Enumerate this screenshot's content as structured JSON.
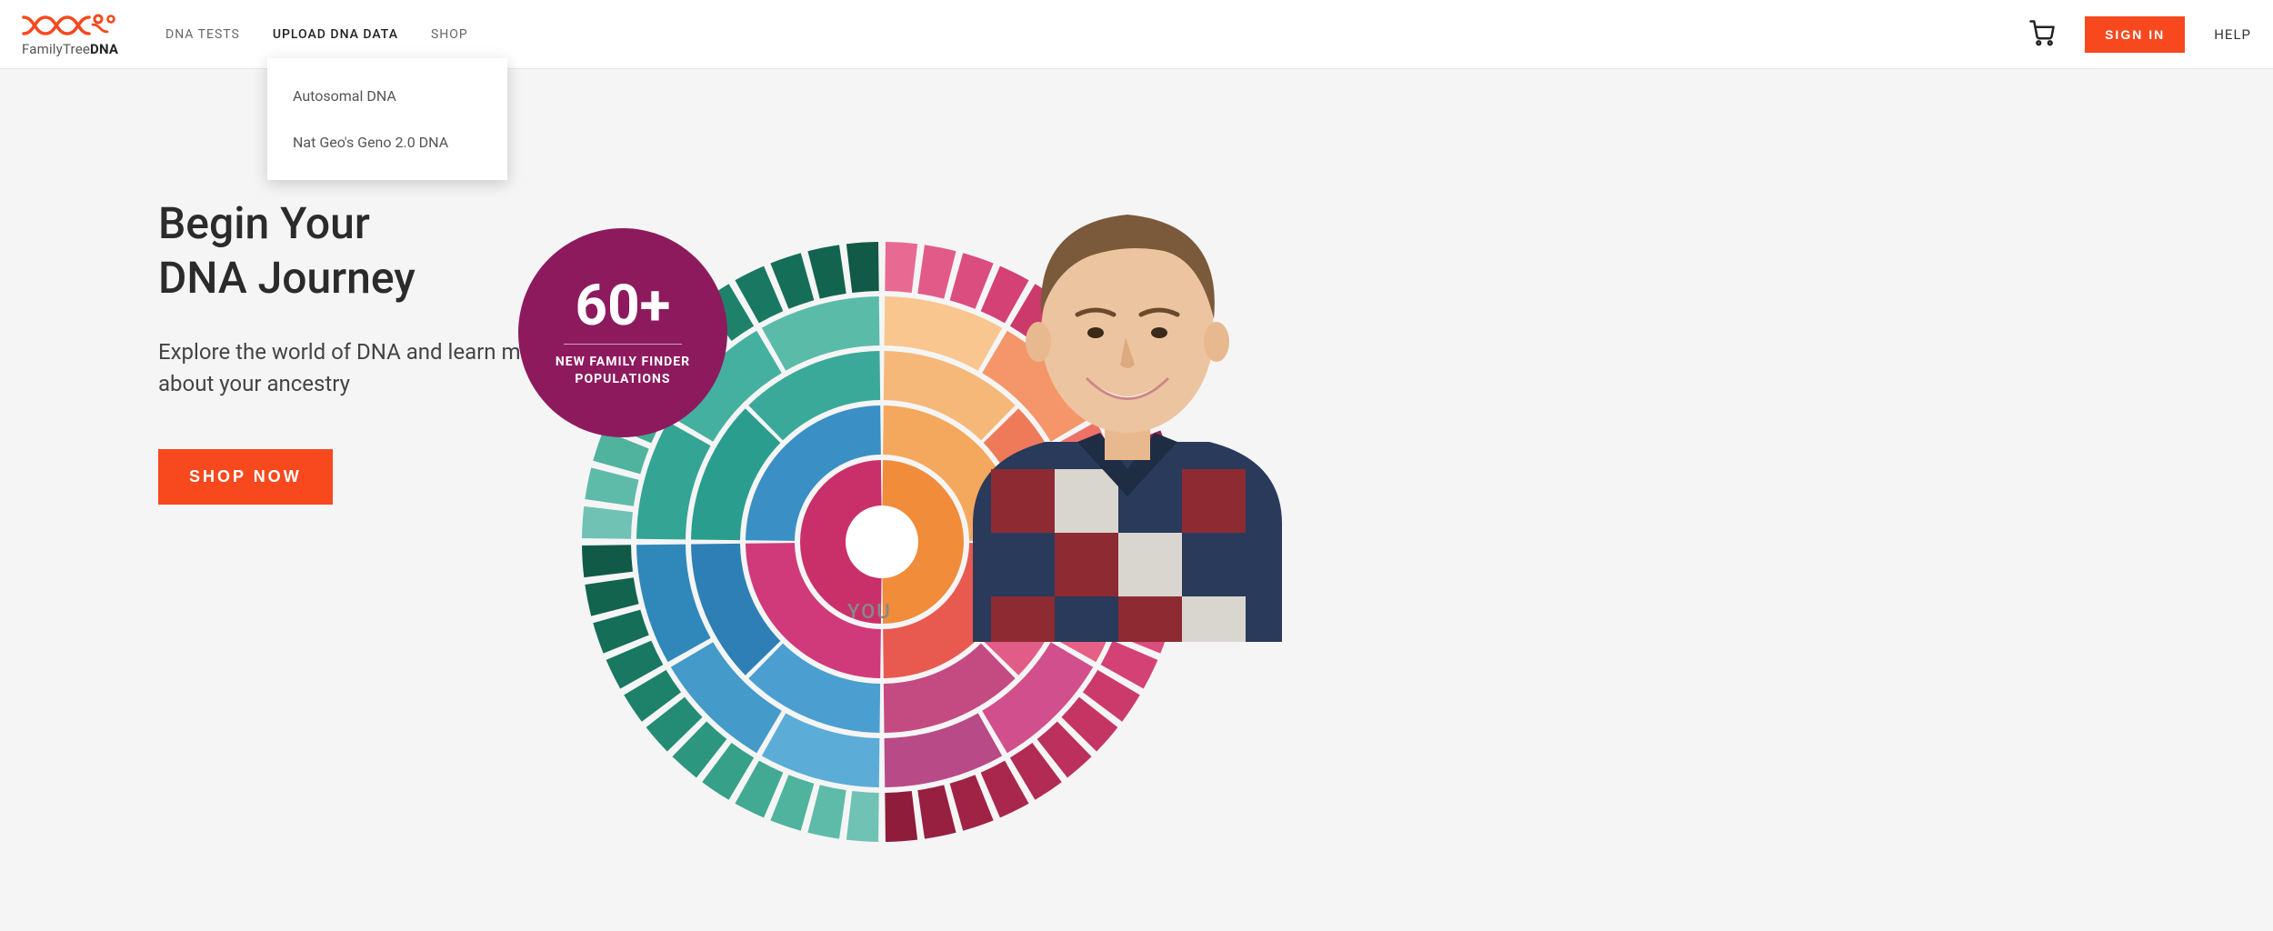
{
  "brand": {
    "name_light": "FamilyTree",
    "name_bold": "DNA",
    "logo_color": "#f7481e"
  },
  "nav": {
    "items": [
      {
        "label": "DNA TESTS"
      },
      {
        "label": "UPLOAD DNA DATA"
      },
      {
        "label": "SHOP"
      }
    ],
    "active_index": 1,
    "dropdown": {
      "items": [
        {
          "label": "Autosomal DNA"
        },
        {
          "label": "Nat Geo's Geno 2.0 DNA"
        }
      ]
    }
  },
  "header": {
    "signin": "SIGN IN",
    "help": "HELP",
    "accent": "#f7481e"
  },
  "hero": {
    "title_line1": "Begin Your",
    "title_line2": "DNA Journey",
    "subtitle": "Explore the world of DNA and learn more about your ancestry",
    "cta": "SHOP NOW",
    "cta_bg": "#f7481e"
  },
  "badge": {
    "big": "60+",
    "line1": "NEW FAMILY FINDER",
    "line2": "POPULATIONS",
    "bg": "#8e1a5e"
  },
  "chart": {
    "type": "sunburst",
    "center_label": "YOU",
    "background": "#f5f5f5",
    "gap_color": "#ffffff",
    "ring_gap": 6,
    "rings": [
      {
        "inner": 40,
        "outer": 90,
        "colors": [
          "#f08c3a",
          "#c9306a"
        ]
      },
      {
        "inner": 96,
        "outer": 150,
        "colors": [
          "#f4a85d",
          "#e85a4f",
          "#d13a7a",
          "#3a8fc4"
        ]
      },
      {
        "inner": 156,
        "outer": 210,
        "colors": [
          "#f6b878",
          "#ef7a5a",
          "#e25c88",
          "#c44a82",
          "#4a9fd0",
          "#2e7fb5",
          "#2a9d8f",
          "#3aa99a"
        ]
      },
      {
        "inner": 216,
        "outer": 270,
        "colors": [
          "#f8c68e",
          "#f4966a",
          "#ee7268",
          "#e65f85",
          "#d14f8c",
          "#b84a88",
          "#5cacd8",
          "#449ac9",
          "#3088ba",
          "#34a495",
          "#44b0a0",
          "#5bbba9"
        ]
      },
      {
        "inner": 276,
        "outer": 330,
        "segments": 48,
        "colors_left": [
          "#e86a93",
          "#e25a88",
          "#db4d7e",
          "#d44174",
          "#cc3a6c",
          "#c43564",
          "#bb305c",
          "#b22b54",
          "#a9274d",
          "#a02346",
          "#971f40",
          "#8e1c3a"
        ],
        "colors_right": [
          "#6fc2b4",
          "#5fbba9",
          "#50b39e",
          "#42aa93",
          "#36a088",
          "#2c967e",
          "#248c74",
          "#1e826a",
          "#197861",
          "#156e58",
          "#12644f",
          "#105a47"
        ]
      }
    ]
  }
}
